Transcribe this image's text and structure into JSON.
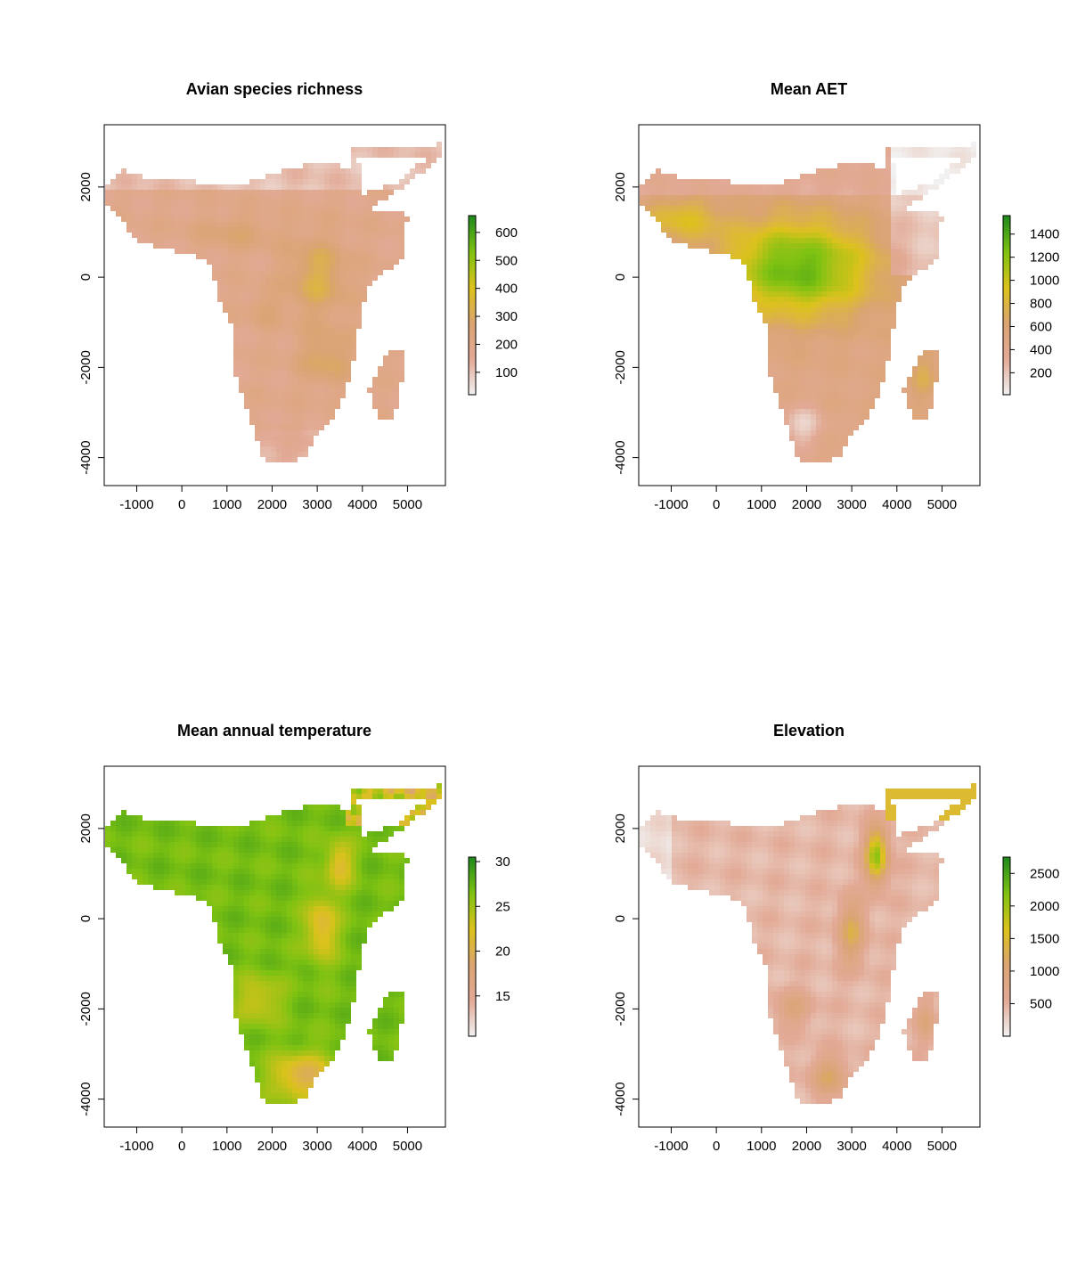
{
  "colors": {
    "ramp": [
      "#f2f2f2",
      "#e2aa96",
      "#dba472",
      "#dcc21c",
      "#7fc212",
      "#1f8a1f"
    ],
    "frame": "#000000",
    "background": "#ffffff"
  },
  "chart_data": [
    {
      "type": "heatmap",
      "title": "Avian species richness",
      "xlabel": "",
      "ylabel": "",
      "xlim": [
        -1720,
        5840
      ],
      "ylim": [
        -4620,
        3380
      ],
      "xticks": [
        -1000,
        0,
        1000,
        2000,
        3000,
        4000,
        5000
      ],
      "yticks": [
        2000,
        0,
        -2000,
        -4000
      ],
      "legend": {
        "range": [
          20,
          660
        ],
        "ticks": [
          100,
          200,
          300,
          400,
          500,
          600
        ],
        "placement": "right"
      },
      "pattern": "richness"
    },
    {
      "type": "heatmap",
      "title": "Mean AET",
      "xlabel": "",
      "ylabel": "",
      "xlim": [
        -1720,
        5840
      ],
      "ylim": [
        -4620,
        3380
      ],
      "xticks": [
        -1000,
        0,
        1000,
        2000,
        3000,
        4000,
        5000
      ],
      "yticks": [
        2000,
        0,
        -2000,
        -4000
      ],
      "legend": {
        "range": [
          10,
          1560
        ],
        "ticks": [
          200,
          400,
          600,
          800,
          1000,
          1200,
          1400
        ],
        "placement": "right"
      },
      "pattern": "aet"
    },
    {
      "type": "heatmap",
      "title": "Mean annual temperature",
      "xlabel": "",
      "ylabel": "",
      "xlim": [
        -1720,
        5840
      ],
      "ylim": [
        -4620,
        3380
      ],
      "xticks": [
        -1000,
        0,
        1000,
        2000,
        3000,
        4000,
        5000
      ],
      "yticks": [
        2000,
        0,
        -2000,
        -4000
      ],
      "legend": {
        "range": [
          10.5,
          30.5
        ],
        "ticks": [
          15,
          20,
          25,
          30
        ],
        "placement": "right"
      },
      "pattern": "temperature"
    },
    {
      "type": "heatmap",
      "title": "Elevation",
      "xlabel": "",
      "ylabel": "",
      "xlim": [
        -1720,
        5840
      ],
      "ylim": [
        -4620,
        3380
      ],
      "xticks": [
        -1000,
        0,
        1000,
        2000,
        3000,
        4000,
        5000
      ],
      "yticks": [
        2000,
        0,
        -2000,
        -4000
      ],
      "legend": {
        "range": [
          0,
          2750
        ],
        "ticks": [
          500,
          1000,
          1500,
          2000,
          2500
        ],
        "placement": "right"
      },
      "pattern": "elevation"
    }
  ]
}
